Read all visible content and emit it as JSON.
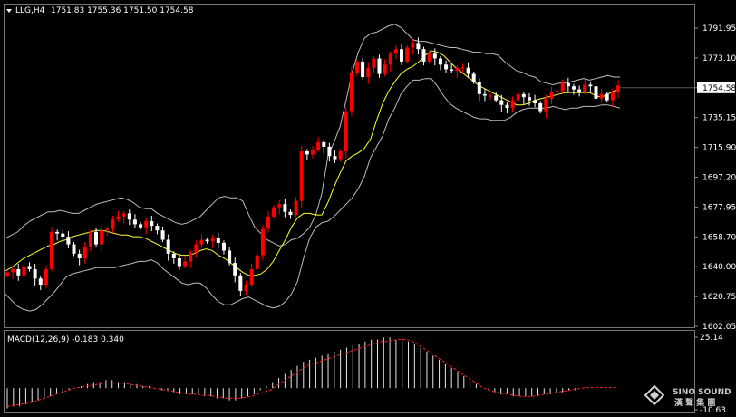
{
  "header": {
    "symbol": "LLG,H4",
    "ohlc": "1751.83 1755.36 1751.50 1754.58"
  },
  "macd": {
    "label": "MACD(12,26,9) -0.183 0.340",
    "axis_labels": [
      "25.14",
      "-10.63"
    ]
  },
  "price_axis": {
    "ticks": [
      "1791.95",
      "1773.10",
      "1754.58",
      "1735.15",
      "1715.90",
      "1697.20",
      "1677.95",
      "1658.70",
      "1640.00",
      "1620.75",
      "1602.05"
    ]
  },
  "watermark": {
    "text": "SINO SOUND",
    "subtext": "漢 聲 集 團"
  },
  "colors": {
    "background": "#000000",
    "grid": "#404040",
    "bull": "#ff0000",
    "bear": "#ffffff",
    "bollinger": "#bdbdbd",
    "ma": "#ffff33",
    "macd_hist": "#e6e6e6",
    "macd_signal": "#ff2020",
    "current_price_box": "#ffffff"
  },
  "chart_data": [
    {
      "type": "candlestick",
      "title": "LLG,H4",
      "current_price": 1754.58,
      "ylim": [
        1602.05,
        1798
      ],
      "indicators": [
        "bollinger_bands",
        "moving_average"
      ],
      "close": [
        1634,
        1636,
        1632,
        1638,
        1636,
        1630,
        1626,
        1636,
        1660,
        1659,
        1657,
        1652,
        1646,
        1643,
        1650,
        1660,
        1652,
        1661,
        1662,
        1668,
        1670,
        1672,
        1668,
        1665,
        1663,
        1667,
        1664,
        1661,
        1655,
        1646,
        1643,
        1638,
        1641,
        1647,
        1652,
        1655,
        1654,
        1656,
        1653,
        1648,
        1640,
        1632,
        1622,
        1626,
        1636,
        1645,
        1662,
        1670,
        1676,
        1678,
        1673,
        1671,
        1680,
        1712,
        1710,
        1713,
        1718,
        1715,
        1709,
        1707,
        1712,
        1738,
        1763,
        1770,
        1760,
        1766,
        1772,
        1762,
        1768,
        1775,
        1778,
        1770,
        1779,
        1782,
        1778,
        1770,
        1775,
        1772,
        1768,
        1765,
        1764,
        1766,
        1766,
        1762,
        1757,
        1749,
        1748,
        1748,
        1745,
        1742,
        1740,
        1745,
        1749,
        1747,
        1745,
        1743,
        1738,
        1746,
        1750,
        1751,
        1756,
        1754,
        1752,
        1750,
        1755,
        1754,
        1746,
        1749,
        1745,
        1750,
        1754.58
      ],
      "bollinger_upper": [
        1656,
        1658,
        1660,
        1664,
        1667,
        1669,
        1671,
        1673,
        1673,
        1674,
        1673,
        1672,
        1672,
        1674,
        1676,
        1678,
        1679,
        1680,
        1681,
        1682,
        1681,
        1679,
        1676,
        1675,
        1675,
        1672,
        1670,
        1668,
        1666,
        1665,
        1666,
        1668,
        1670,
        1674,
        1678,
        1682,
        1683,
        1682,
        1682,
        1680,
        1671,
        1663,
        1659,
        1655,
        1653,
        1651,
        1652,
        1655,
        1656,
        1659,
        1663,
        1671,
        1685,
        1709,
        1718,
        1728,
        1745,
        1763,
        1776,
        1785,
        1788,
        1789,
        1791,
        1793,
        1794,
        1792,
        1788,
        1784,
        1783,
        1783,
        1782,
        1781,
        1780,
        1779,
        1779,
        1778,
        1777,
        1776,
        1776,
        1775,
        1775,
        1774,
        1770,
        1767,
        1764,
        1763,
        1761,
        1760,
        1757,
        1756,
        1755,
        1756,
        1756,
        1757,
        1758,
        1759,
        1758,
        1759,
        1760,
        1761,
        1760,
        1760
      ],
      "bollinger_lower": [
        1620,
        1616,
        1612,
        1610,
        1609,
        1610,
        1613,
        1617,
        1621,
        1626,
        1631,
        1633,
        1634,
        1635,
        1636,
        1637,
        1637,
        1637,
        1637,
        1638,
        1639,
        1640,
        1641,
        1641,
        1642,
        1640,
        1636,
        1633,
        1630,
        1627,
        1626,
        1627,
        1627,
        1624,
        1619,
        1615,
        1613,
        1613,
        1615,
        1617,
        1618,
        1616,
        1614,
        1612,
        1611,
        1612,
        1615,
        1620,
        1628,
        1643,
        1656,
        1663,
        1666,
        1667,
        1670,
        1674,
        1678,
        1682,
        1688,
        1696,
        1708,
        1715,
        1722,
        1733,
        1740,
        1749,
        1754,
        1758,
        1758,
        1759,
        1759,
        1754,
        1748,
        1743,
        1740,
        1738,
        1736,
        1734,
        1733,
        1733,
        1732,
        1732,
        1732,
        1734,
        1737,
        1739,
        1740,
        1740,
        1740,
        1740,
        1741,
        1740,
        1739,
        1740,
        1740,
        1741,
        1741,
        1741,
        1742,
        1742,
        1741,
        1740
      ],
      "moving_average": [
        1635,
        1637,
        1640,
        1643,
        1645,
        1647,
        1649,
        1651,
        1652,
        1654,
        1655,
        1657,
        1658,
        1659,
        1660,
        1661,
        1661,
        1660,
        1659,
        1658,
        1658,
        1657,
        1657,
        1656,
        1654,
        1652,
        1650,
        1648,
        1646,
        1645,
        1645,
        1646,
        1648,
        1649,
        1648,
        1645,
        1643,
        1640,
        1637,
        1634,
        1632,
        1632,
        1633,
        1636,
        1641,
        1648,
        1655,
        1663,
        1669,
        1672,
        1672,
        1671,
        1671,
        1679,
        1689,
        1698,
        1706,
        1709,
        1711,
        1714,
        1720,
        1732,
        1743,
        1751,
        1757,
        1762,
        1765,
        1767,
        1770,
        1774,
        1777,
        1776,
        1774,
        1770,
        1766,
        1763,
        1760,
        1757,
        1754,
        1752,
        1750,
        1748,
        1746,
        1744,
        1742,
        1742,
        1743,
        1745,
        1746,
        1747,
        1748,
        1749,
        1750,
        1750,
        1750,
        1750,
        1750,
        1748,
        1747,
        1749,
        1751,
        1752
      ]
    },
    {
      "type": "bar",
      "title": "MACD(12,26,9)",
      "macd_value": -0.183,
      "signal_value": 0.34,
      "ylim": [
        -10.63,
        25.14
      ],
      "histogram": [
        -10,
        -9,
        -9,
        -8,
        -7,
        -6,
        -5,
        -4,
        -3,
        -2,
        -1,
        0,
        1,
        2,
        3,
        3,
        4,
        4,
        3,
        3,
        2,
        2,
        1,
        1,
        0,
        -1,
        -1,
        -2,
        -3,
        -3,
        -3,
        -3,
        -4,
        -4,
        -5,
        -5,
        -6,
        -6,
        -5,
        -4,
        -3,
        -1,
        1,
        3,
        5,
        7,
        9,
        11,
        13,
        14,
        15,
        16,
        17,
        18,
        19,
        20,
        21,
        22,
        23,
        24,
        24,
        25,
        25,
        24,
        24,
        23,
        22,
        20,
        18,
        16,
        14,
        12,
        10,
        8,
        6,
        4,
        2,
        0,
        -1,
        -2,
        -3,
        -3,
        -4,
        -4,
        -4,
        -4,
        -4,
        -3,
        -3,
        -2,
        -2,
        -1,
        -1,
        0,
        0,
        0,
        0,
        0,
        0,
        0
      ],
      "signal": [
        -9,
        -8.5,
        -8,
        -7.5,
        -7,
        -6,
        -5,
        -4,
        -3,
        -2,
        -1,
        0,
        0.5,
        1,
        1.5,
        2,
        2.5,
        2.5,
        2.5,
        2.5,
        2,
        1.5,
        1,
        0.5,
        0,
        -0.5,
        -1,
        -1.5,
        -2,
        -2.5,
        -3,
        -3,
        -3.5,
        -3.5,
        -4,
        -4.5,
        -5,
        -5,
        -5,
        -4.5,
        -4,
        -3,
        -2,
        -1,
        1,
        3,
        5,
        7,
        9,
        11,
        12,
        13,
        14,
        15,
        16,
        17,
        18,
        19,
        20,
        21,
        22,
        23,
        23,
        23.5,
        24,
        24,
        23.5,
        22,
        20,
        18,
        16,
        14,
        12,
        10,
        8,
        6,
        4,
        2,
        0,
        -1,
        -2,
        -2.5,
        -3,
        -3.5,
        -4,
        -4,
        -4,
        -3.5,
        -3,
        -2.5,
        -2,
        -1.5,
        -1,
        -0.5,
        0,
        0.3,
        0.3,
        0.34,
        0.34,
        0.34,
        0.34
      ]
    }
  ]
}
